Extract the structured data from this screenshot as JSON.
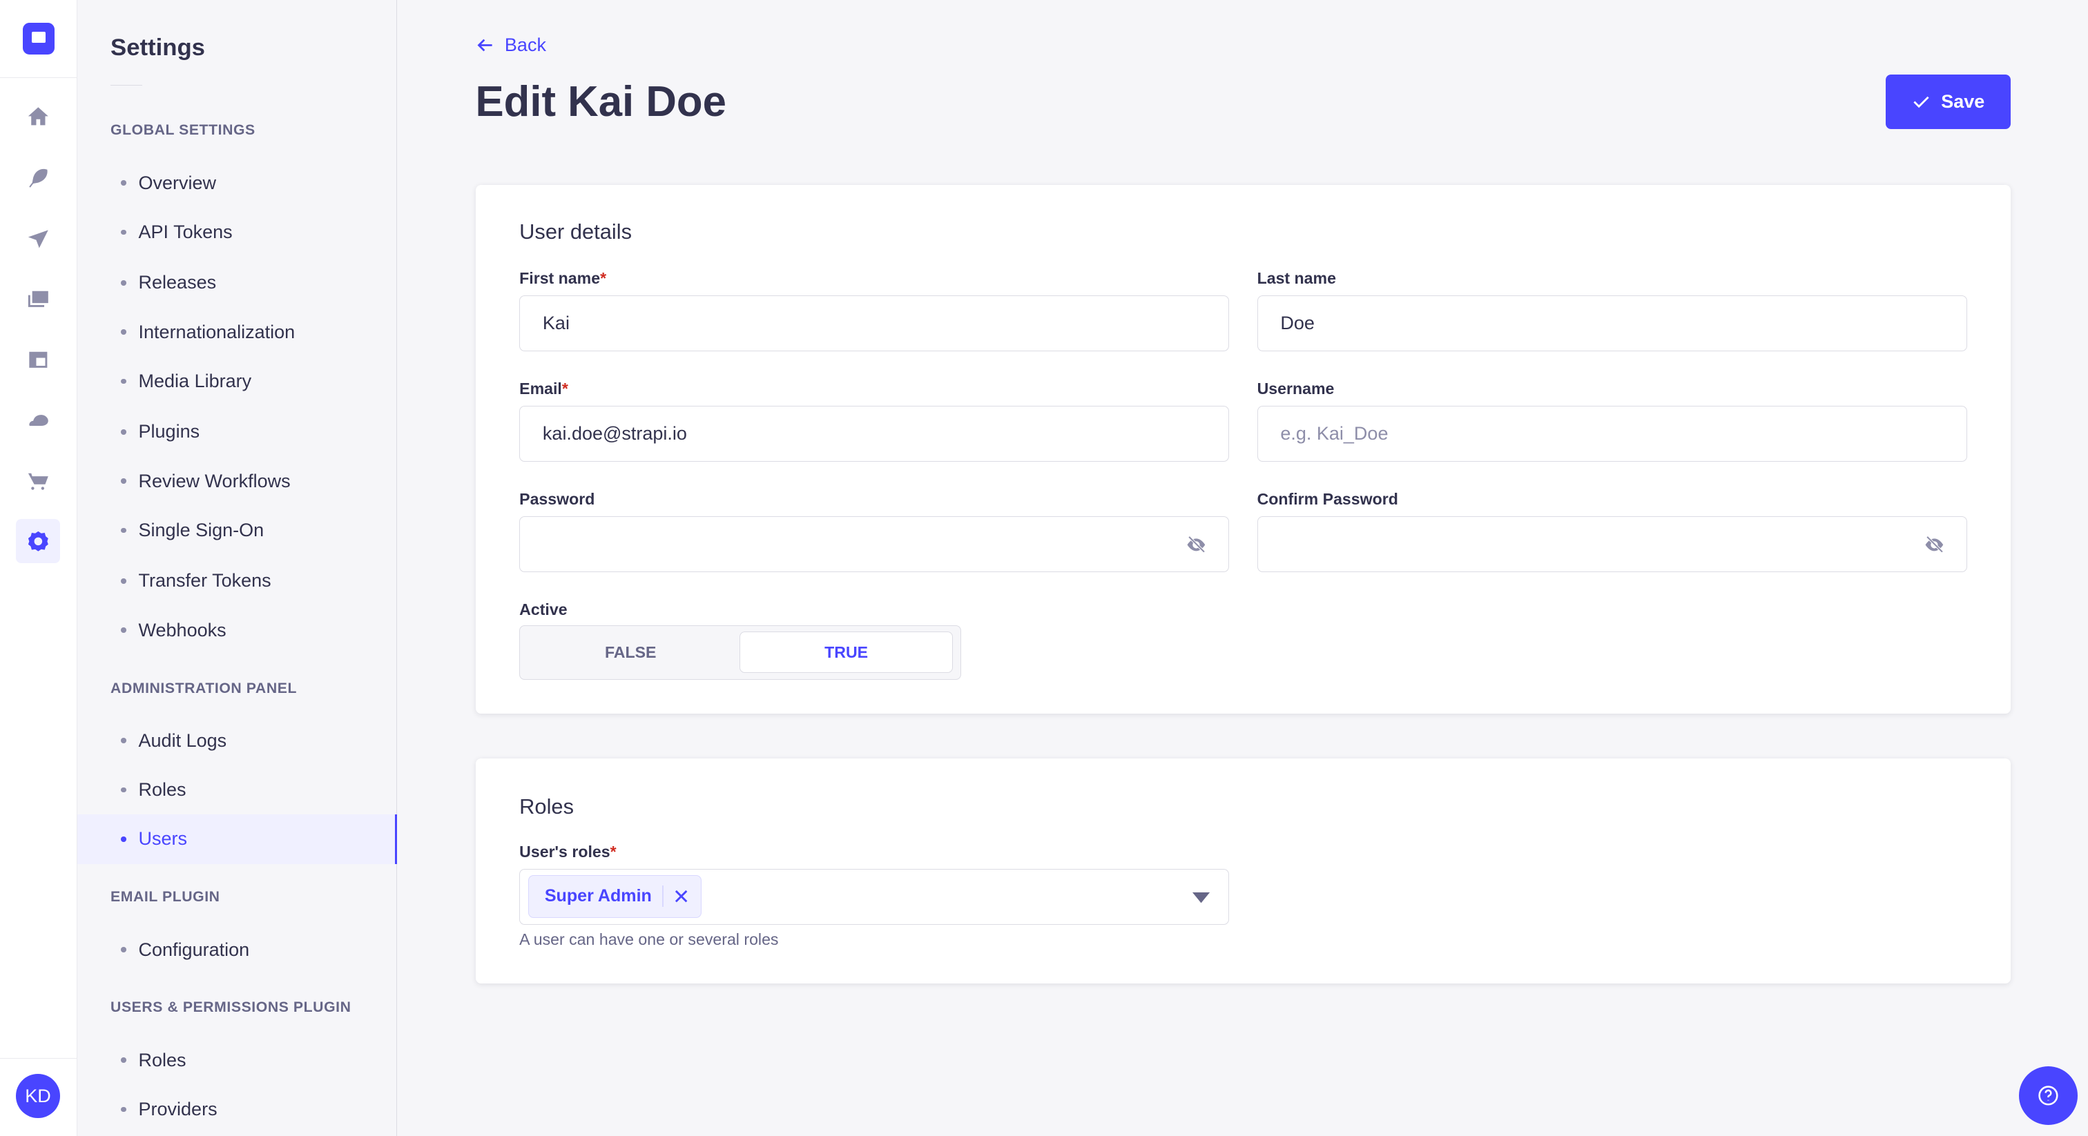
{
  "rail": {
    "icons": [
      "home-icon",
      "feather-icon",
      "paper-plane-icon",
      "images-icon",
      "layout-icon",
      "cloud-icon",
      "cart-icon",
      "gear-icon"
    ],
    "active": "gear-icon",
    "avatar_initials": "KD"
  },
  "sidebar": {
    "title": "Settings",
    "sections": [
      {
        "heading": "GLOBAL SETTINGS",
        "items": [
          "Overview",
          "API Tokens",
          "Releases",
          "Internationalization",
          "Media Library",
          "Plugins",
          "Review Workflows",
          "Single Sign-On",
          "Transfer Tokens",
          "Webhooks"
        ]
      },
      {
        "heading": "ADMINISTRATION PANEL",
        "items": [
          "Audit Logs",
          "Roles",
          "Users"
        ]
      },
      {
        "heading": "EMAIL PLUGIN",
        "items": [
          "Configuration"
        ]
      },
      {
        "heading": "USERS & PERMISSIONS PLUGIN",
        "items": [
          "Roles",
          "Providers"
        ]
      }
    ],
    "active_item": "Users"
  },
  "header": {
    "back_label": "Back",
    "title": "Edit Kai Doe",
    "save_label": "Save"
  },
  "user_details": {
    "heading": "User details",
    "first_name": {
      "label": "First name",
      "required": "*",
      "value": "Kai"
    },
    "last_name": {
      "label": "Last name",
      "value": "Doe"
    },
    "email": {
      "label": "Email",
      "required": "*",
      "value": "kai.doe@strapi.io"
    },
    "username": {
      "label": "Username",
      "placeholder": "e.g. Kai_Doe",
      "value": ""
    },
    "password": {
      "label": "Password",
      "value": ""
    },
    "confirm_password": {
      "label": "Confirm Password",
      "value": ""
    },
    "active": {
      "label": "Active",
      "false_label": "FALSE",
      "true_label": "TRUE",
      "selected": "TRUE"
    }
  },
  "roles": {
    "heading": "Roles",
    "label": "User's roles",
    "required": "*",
    "selected": [
      "Super Admin"
    ],
    "hint": "A user can have one or several roles"
  },
  "colors": {
    "primary": "#4945ff",
    "text": "#32324d",
    "muted": "#8e8ea9",
    "required": "#d02b20"
  }
}
